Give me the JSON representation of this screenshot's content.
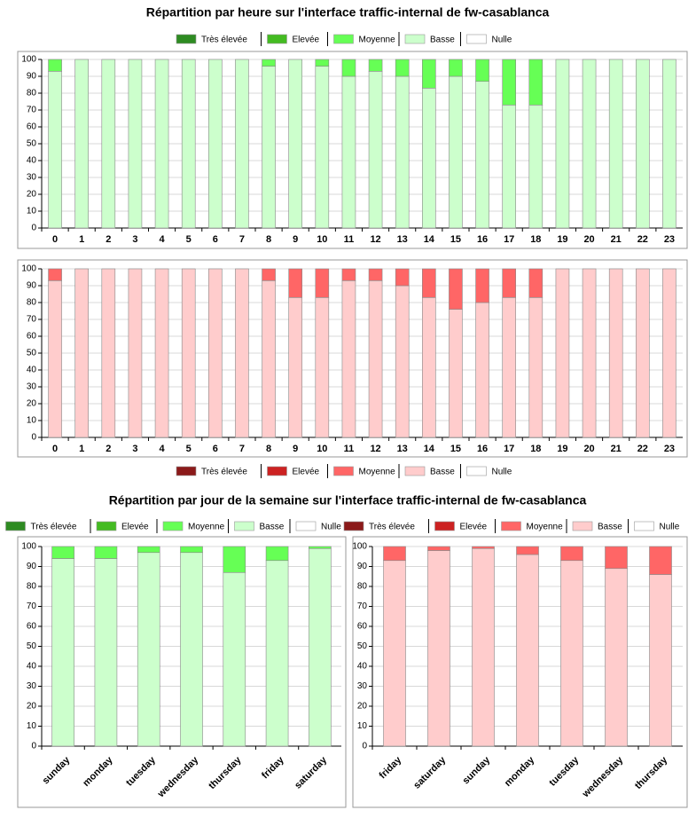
{
  "chart_data": [
    {
      "type": "bar",
      "stacked": true,
      "title": "Répartition par heure sur l'interface traffic-internal de fw-casablanca",
      "legend": "top",
      "grid": true,
      "categories": [
        "0",
        "1",
        "2",
        "3",
        "4",
        "5",
        "6",
        "7",
        "8",
        "9",
        "10",
        "11",
        "12",
        "13",
        "14",
        "15",
        "16",
        "17",
        "18",
        "19",
        "20",
        "21",
        "22",
        "23"
      ],
      "series": [
        {
          "name": "Très élevée",
          "color": "#2e8b22",
          "values": [
            0,
            0,
            0,
            0,
            0,
            0,
            0,
            0,
            0,
            0,
            0,
            0,
            0,
            0,
            0,
            0,
            0,
            0,
            0,
            0,
            0,
            0,
            0,
            0
          ]
        },
        {
          "name": "Elevée",
          "color": "#44bb22",
          "values": [
            0,
            0,
            0,
            0,
            0,
            0,
            0,
            0,
            0,
            0,
            0,
            0,
            0,
            0,
            0,
            0,
            0,
            0,
            0,
            0,
            0,
            0,
            0,
            0
          ]
        },
        {
          "name": "Moyenne",
          "color": "#66ff55",
          "values": [
            7,
            0,
            0,
            0,
            0,
            0,
            0,
            0,
            4,
            0,
            4,
            10,
            7,
            10,
            17,
            10,
            13,
            27,
            27,
            0,
            0,
            0,
            0,
            0
          ]
        },
        {
          "name": "Basse",
          "color": "#ccffcc",
          "values": [
            93,
            100,
            100,
            100,
            100,
            100,
            100,
            100,
            96,
            100,
            96,
            90,
            93,
            90,
            83,
            90,
            87,
            73,
            73,
            100,
            100,
            100,
            100,
            100
          ]
        },
        {
          "name": "Nulle",
          "color": "#ffffff",
          "values": [
            0,
            0,
            0,
            0,
            0,
            0,
            0,
            0,
            0,
            0,
            0,
            0,
            0,
            0,
            0,
            0,
            0,
            0,
            0,
            0,
            0,
            0,
            0,
            0
          ]
        }
      ],
      "ylim": [
        0,
        100
      ],
      "yticks": [
        0,
        10,
        20,
        30,
        40,
        50,
        60,
        70,
        80,
        90,
        100
      ]
    },
    {
      "type": "bar",
      "stacked": true,
      "legend": "bottom",
      "grid": true,
      "categories": [
        "0",
        "1",
        "2",
        "3",
        "4",
        "5",
        "6",
        "7",
        "8",
        "9",
        "10",
        "11",
        "12",
        "13",
        "14",
        "15",
        "16",
        "17",
        "18",
        "19",
        "20",
        "21",
        "22",
        "23"
      ],
      "series": [
        {
          "name": "Très élevée",
          "color": "#8b1a1a",
          "values": [
            0,
            0,
            0,
            0,
            0,
            0,
            0,
            0,
            0,
            0,
            0,
            0,
            0,
            0,
            0,
            0,
            0,
            0,
            0,
            0,
            0,
            0,
            0,
            0
          ]
        },
        {
          "name": "Elevée",
          "color": "#cc2222",
          "values": [
            0,
            0,
            0,
            0,
            0,
            0,
            0,
            0,
            0,
            0,
            0,
            0,
            0,
            0,
            0,
            0,
            0,
            0,
            0,
            0,
            0,
            0,
            0,
            0
          ]
        },
        {
          "name": "Moyenne",
          "color": "#ff6666",
          "values": [
            7,
            0,
            0,
            0,
            0,
            0,
            0,
            0,
            7,
            17,
            17,
            7,
            7,
            10,
            17,
            24,
            20,
            17,
            17,
            0,
            0,
            0,
            0,
            0
          ]
        },
        {
          "name": "Basse",
          "color": "#ffcccc",
          "values": [
            93,
            100,
            100,
            100,
            100,
            100,
            100,
            100,
            93,
            83,
            83,
            93,
            93,
            90,
            83,
            76,
            80,
            83,
            83,
            100,
            100,
            100,
            100,
            100
          ]
        },
        {
          "name": "Nulle",
          "color": "#ffffff",
          "values": [
            0,
            0,
            0,
            0,
            0,
            0,
            0,
            0,
            0,
            0,
            0,
            0,
            0,
            0,
            0,
            0,
            0,
            0,
            0,
            0,
            0,
            0,
            0,
            0
          ]
        }
      ],
      "ylim": [
        0,
        100
      ],
      "yticks": [
        0,
        10,
        20,
        30,
        40,
        50,
        60,
        70,
        80,
        90,
        100
      ]
    },
    {
      "type": "bar",
      "stacked": true,
      "title": "Répartition par jour de la semaine sur l'interface traffic-internal de fw-casablanca",
      "legend": "top",
      "grid": true,
      "categories": [
        "sunday",
        "monday",
        "tuesday",
        "wednesday",
        "thursday",
        "friday",
        "saturday"
      ],
      "series": [
        {
          "name": "Très élevée",
          "color": "#2e8b22",
          "values": [
            0,
            0,
            0,
            0,
            0,
            0,
            0
          ]
        },
        {
          "name": "Elevée",
          "color": "#44bb22",
          "values": [
            0,
            0,
            0,
            0,
            0,
            0,
            0
          ]
        },
        {
          "name": "Moyenne",
          "color": "#66ff55",
          "values": [
            6,
            6,
            3,
            3,
            13,
            7,
            1
          ]
        },
        {
          "name": "Basse",
          "color": "#ccffcc",
          "values": [
            94,
            94,
            97,
            97,
            87,
            93,
            99
          ]
        },
        {
          "name": "Nulle",
          "color": "#ffffff",
          "values": [
            0,
            0,
            0,
            0,
            0,
            0,
            0
          ]
        }
      ],
      "ylim": [
        0,
        100
      ],
      "yticks": [
        0,
        10,
        20,
        30,
        40,
        50,
        60,
        70,
        80,
        90,
        100
      ]
    },
    {
      "type": "bar",
      "stacked": true,
      "legend": "top",
      "grid": true,
      "categories": [
        "friday",
        "saturday",
        "sunday",
        "monday",
        "tuesday",
        "wednesday",
        "thursday"
      ],
      "series": [
        {
          "name": "Très élevée",
          "color": "#8b1a1a",
          "values": [
            0,
            0,
            0,
            0,
            0,
            0,
            0
          ]
        },
        {
          "name": "Elevée",
          "color": "#cc2222",
          "values": [
            0,
            0,
            0,
            0,
            0,
            0,
            0
          ]
        },
        {
          "name": "Moyenne",
          "color": "#ff6666",
          "values": [
            7,
            2,
            1,
            4,
            7,
            11,
            14
          ]
        },
        {
          "name": "Basse",
          "color": "#ffcccc",
          "values": [
            93,
            98,
            99,
            96,
            93,
            89,
            86
          ]
        },
        {
          "name": "Nulle",
          "color": "#ffffff",
          "values": [
            0,
            0,
            0,
            0,
            0,
            0,
            0
          ]
        }
      ],
      "ylim": [
        0,
        100
      ],
      "yticks": [
        0,
        10,
        20,
        30,
        40,
        50,
        60,
        70,
        80,
        90,
        100
      ]
    }
  ]
}
